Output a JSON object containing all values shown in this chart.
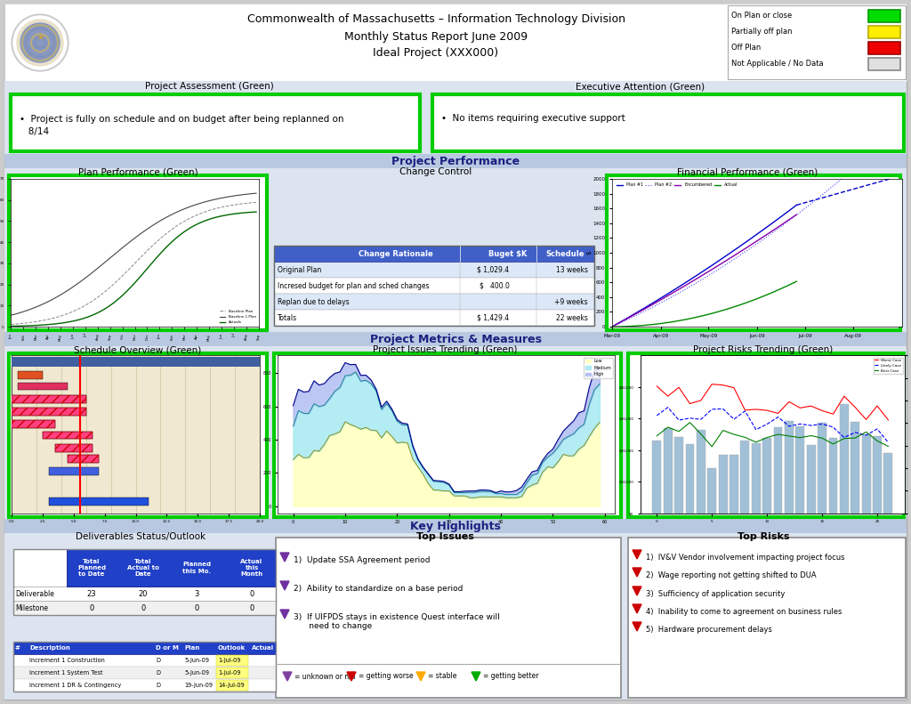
{
  "title_line1": "Commonwealth of Massachusetts – Information Technology Division",
  "title_line2": "Monthly Status Report June 2009",
  "title_line3": "Ideal Project (XXX000)",
  "legend_items": [
    {
      "label": "On Plan or close",
      "color": "#00dd00",
      "border": "#009900"
    },
    {
      "label": "Partially off plan",
      "color": "#ffee00",
      "border": "#bbaa00"
    },
    {
      "label": "Off Plan",
      "color": "#ee0000",
      "border": "#990000"
    },
    {
      "label": "Not Applicable / No Data",
      "color": "#e0e0e0",
      "border": "#888888"
    }
  ],
  "green_border": "#00cc00",
  "header_bg": "#ffffff",
  "band_bg": "#b8c8e0",
  "section_bg": "#dce4f0",
  "project_assessment_title": "Project Assessment (Green)",
  "project_assessment_text": "•  Project is fully on schedule and on budget after being replanned on\n   8/14",
  "exec_attention_title": "Executive Attention (Green)",
  "exec_attention_text": "•  No items requiring executive support",
  "project_performance_title": "Project Performance",
  "plan_perf_title": "Plan Performance (Green)",
  "change_control_title": "Change Control",
  "financial_perf_title": "Financial Performance (Green)",
  "project_metrics_title": "Project Metrics & Measures",
  "schedule_overview_title": "Schedule Overview (Green)",
  "issues_trending_title": "Project Issues Trending (Green)",
  "risks_trending_title": "Project Risks Trending (Green)",
  "key_highlights_title": "Key Highlights",
  "deliverables_title": "Deliverables Status/Outlook",
  "top_issues_title": "Top Issues",
  "top_risks_title": "Top Risks",
  "change_control_header_bg": "#4060c8",
  "deliverables_table_header_bg": "#2040c8",
  "deliverables_detail_header_bg": "#2040c8",
  "outlook_cell_bg": "#ffff80",
  "change_control_rows": [
    [
      "Original Plan",
      "$ 1,029.4",
      "13 weeks"
    ],
    [
      "Incresed budget for plan and sched changes",
      "$   400.0",
      ""
    ],
    [
      "Replan due to delays",
      "",
      "+9 weeks"
    ],
    [
      "Totals",
      "$ 1,429.4",
      "22 weeks"
    ]
  ],
  "deliverables_summary": [
    {
      "label": "Deliverable",
      "tp": 23,
      "ta": 20,
      "pm": 3,
      "am": 0
    },
    {
      "label": "Milestone",
      "tp": 0,
      "ta": 0,
      "pm": 0,
      "am": 0
    }
  ],
  "deliverables_detail_rows": [
    [
      "",
      "Increment 1 Construction",
      "D",
      "5-Jun-09",
      "1-Jul-09",
      ""
    ],
    [
      "",
      "Increment 1 System Test",
      "D",
      "5-Jun-09",
      "1-Jul-09",
      ""
    ],
    [
      "",
      "Increment 1 DR & Contingency",
      "D",
      "19-Jun-09",
      "14-Jul-09",
      ""
    ]
  ],
  "top_issues_items": [
    "1)  Update SSA Agreement period",
    "2)  Ability to standardize on a base period",
    "3)  If UIFPDS stays in existence Quest interface will\n      need to change"
  ],
  "top_risks_items": [
    "1)  IV&V Vendor involvement impacting project focus",
    "2)  Wage reporting not getting shifted to DUA",
    "3)  Sufficiency of application security",
    "4)  Inability to come to agreement on business rules",
    "5)  Hardware procurement delays"
  ]
}
